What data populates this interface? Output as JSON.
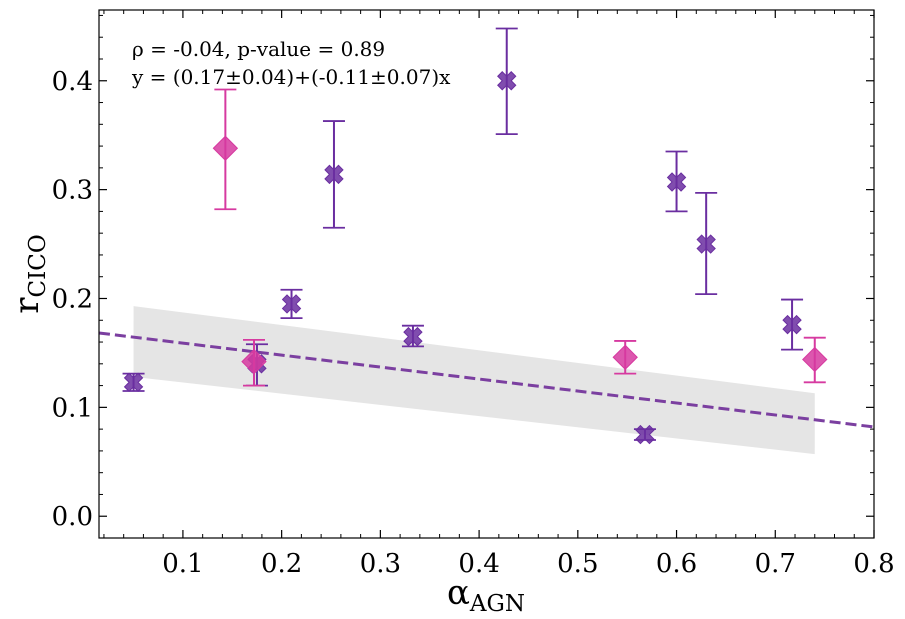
{
  "chart_data": {
    "type": "scatter",
    "xlim": [
      0.015,
      0.8
    ],
    "ylim": [
      -0.02,
      0.465
    ],
    "x_ticks": [
      "0.1",
      "0.2",
      "0.3",
      "0.4",
      "0.5",
      "0.6",
      "0.7",
      "0.8"
    ],
    "y_ticks": [
      "0.0",
      "0.1",
      "0.2",
      "0.3",
      "0.4"
    ],
    "xlabel": {
      "main": "α",
      "sub": "AGN"
    },
    "ylabel": {
      "main": "r",
      "sub": "CICO"
    },
    "annotations": [
      "ρ = -0.04, p-value = 0.89",
      "y = (0.17±0.04)+(-0.11±0.07)x"
    ],
    "fit": {
      "intercept": 0.17,
      "slope": -0.11,
      "x_range": [
        0.015,
        0.8
      ],
      "color": "#7b3fa0"
    },
    "confidence_band": {
      "x": [
        0.05,
        0.74
      ],
      "lower": [
        0.128,
        0.057
      ],
      "upper": [
        0.193,
        0.113
      ],
      "color": "#e5e5e5"
    },
    "series": [
      {
        "marker": "x",
        "color": "#6a2ea0",
        "points": [
          {
            "x": 0.05,
            "y": 0.123,
            "lo": 0.115,
            "hi": 0.131
          },
          {
            "x": 0.175,
            "y": 0.14,
            "lo": 0.12,
            "hi": 0.158
          },
          {
            "x": 0.21,
            "y": 0.195,
            "lo": 0.182,
            "hi": 0.208
          },
          {
            "x": 0.253,
            "y": 0.314,
            "lo": 0.265,
            "hi": 0.363
          },
          {
            "x": 0.333,
            "y": 0.165,
            "lo": 0.156,
            "hi": 0.175
          },
          {
            "x": 0.428,
            "y": 0.4,
            "lo": 0.351,
            "hi": 0.448
          },
          {
            "x": 0.568,
            "y": 0.075,
            "lo": 0.07,
            "hi": 0.08
          },
          {
            "x": 0.6,
            "y": 0.307,
            "lo": 0.28,
            "hi": 0.335
          },
          {
            "x": 0.63,
            "y": 0.25,
            "lo": 0.204,
            "hi": 0.297
          },
          {
            "x": 0.717,
            "y": 0.176,
            "lo": 0.153,
            "hi": 0.199
          }
        ]
      },
      {
        "marker": "diamond",
        "color": "#d63aa0",
        "points": [
          {
            "x": 0.143,
            "y": 0.338,
            "lo": 0.282,
            "hi": 0.392
          },
          {
            "x": 0.172,
            "y": 0.142,
            "lo": 0.12,
            "hi": 0.162
          },
          {
            "x": 0.548,
            "y": 0.146,
            "lo": 0.131,
            "hi": 0.161
          },
          {
            "x": 0.74,
            "y": 0.144,
            "lo": 0.123,
            "hi": 0.164
          }
        ]
      }
    ]
  }
}
